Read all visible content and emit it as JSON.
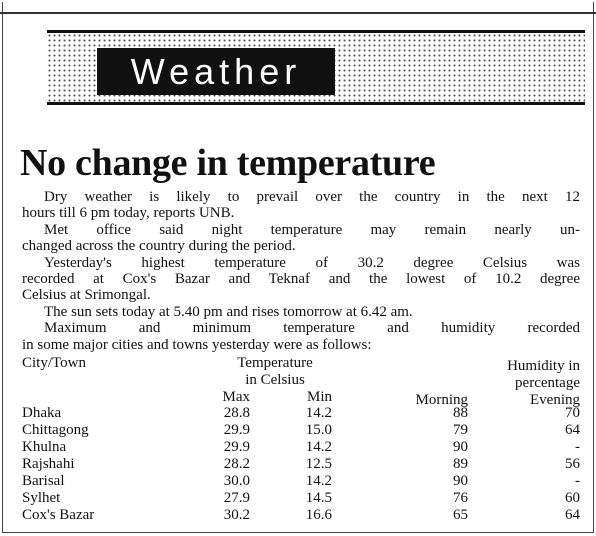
{
  "header": {
    "section": "Weather"
  },
  "headline": "No change in temperature",
  "paragraphs": [
    [
      "Dry weather is likely to prevail over the country in the next 12",
      "hours till 6 pm today, reports UNB."
    ],
    [
      "Met office said night temperature may remain nearly un-",
      "changed across the country during the period."
    ],
    [
      "Yesterday's highest temperature of 30.2 degree Celsius was",
      "recorded at Cox's Bazar and Teknaf and the lowest of 10.2 degree",
      "Celsius at Srimongal."
    ],
    [
      "The sun sets today at 5.40 pm and rises tomorrow at 6.42 am."
    ],
    [
      "Maximum and minimum temperature and humidity recorded",
      "in some major cities and towns yesterday were as follows:"
    ]
  ],
  "table": {
    "headers": {
      "city": "City/Town",
      "temperature": [
        "Temperature",
        "in Celsius"
      ],
      "humidity": [
        "Humidity in",
        "percentage"
      ],
      "columns": [
        "Max",
        "Min",
        "Morning",
        "Evening"
      ]
    },
    "rows": [
      [
        "Dhaka",
        "28.8",
        "14.2",
        "88",
        "70"
      ],
      [
        "Chittagong",
        "29.9",
        "15.0",
        "79",
        "64"
      ],
      [
        "Khulna",
        "29.9",
        "14.2",
        "90",
        "-"
      ],
      [
        "Rajshahi",
        "28.2",
        "12.5",
        "89",
        "56"
      ],
      [
        "Barisal",
        "30.0",
        "14.2",
        "90",
        "-"
      ],
      [
        "Sylhet",
        "27.9",
        "14.5",
        "76",
        "60"
      ],
      [
        "Cox's Bazar",
        "30.2",
        "16.6",
        "65",
        "64"
      ]
    ]
  }
}
